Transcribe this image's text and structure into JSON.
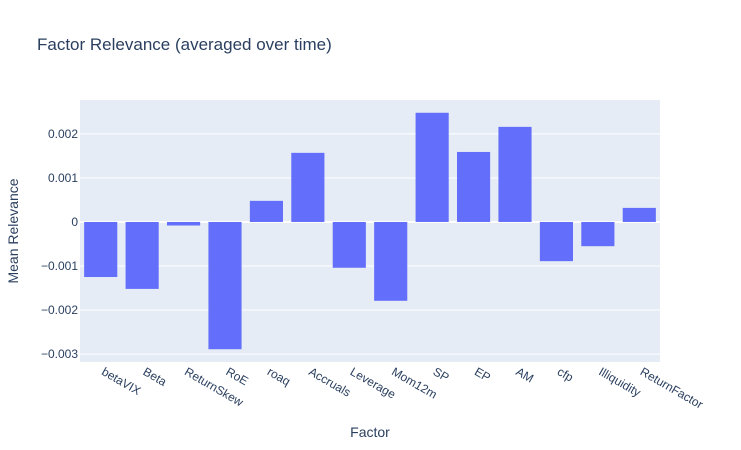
{
  "chart_data": {
    "type": "bar",
    "title": "Factor Relevance (averaged over time)",
    "xlabel": "Factor",
    "ylabel": "Mean Relevance",
    "categories": [
      "betaVIX",
      "Beta",
      "ReturnSkew",
      "RoE",
      "roaq",
      "Accruals",
      "Leverage",
      "Mom12m",
      "SP",
      "EP",
      "AM",
      "cfp",
      "Illiquidity",
      "ReturnFactor"
    ],
    "values": [
      -0.00125,
      -0.00152,
      -8e-05,
      -0.00289,
      0.00048,
      0.00157,
      -0.00104,
      -0.00179,
      0.00248,
      0.00159,
      0.00216,
      -0.00089,
      -0.00055,
      0.00032
    ],
    "ylim": [
      -0.00318,
      0.00277
    ],
    "yticks": [
      0.002,
      0.001,
      0,
      -0.001,
      -0.002,
      -0.003
    ],
    "ytick_labels": [
      "0.002",
      "0.001",
      "0",
      "−0.001",
      "−0.002",
      "−0.003"
    ],
    "grid": true,
    "legend": "none",
    "colors": {
      "bar": "#636efa",
      "plot_bg": "#e5ecf6",
      "text": "#2a3f5f"
    }
  }
}
